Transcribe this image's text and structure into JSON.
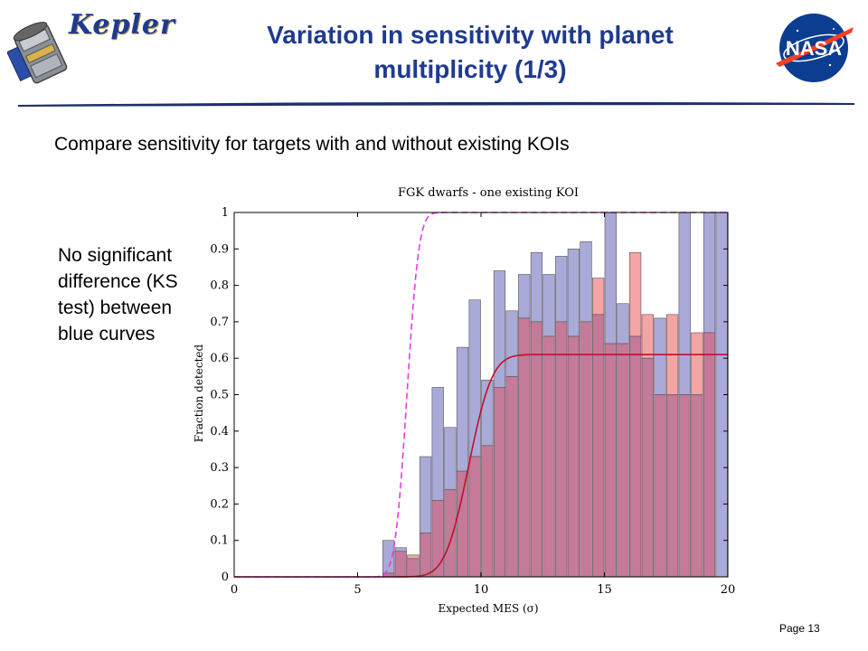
{
  "header": {
    "title": "Variation in sensitivity with planet multiplicity (1/3)",
    "logo_left_text": "Kepler",
    "logo_right_text": "NASA"
  },
  "subtitle": "Compare sensitivity for targets with and without existing KOIs",
  "side_note": "No significant difference (KS test) between blue curves",
  "page_number": "Page 13",
  "colors": {
    "title": "#1f3b8f",
    "blue_bar_fill": "#aaaad8",
    "red_bar_fill": "#f4a4a4",
    "overlap_fill": "#c47a98",
    "red_curve": "#c0102a",
    "magenta_curve": "#e63ce6",
    "nasa_blue": "#0b3d91",
    "nasa_red": "#fc3d21"
  },
  "chart_data": {
    "type": "bar",
    "title": "FGK dwarfs - one existing KOI",
    "xlabel": "Expected MES (σ)",
    "ylabel": "Fraction detected",
    "xlim": [
      0,
      20
    ],
    "ylim": [
      0,
      1
    ],
    "xticks": [
      "0",
      "5",
      "10",
      "15",
      "20"
    ],
    "yticks": [
      "0",
      "0.1",
      "0.2",
      "0.3",
      "0.4",
      "0.5",
      "0.6",
      "0.7",
      "0.8",
      "0.9",
      "1"
    ],
    "bin_width": 0.5,
    "bin_starts": [
      6,
      6.5,
      7,
      7.5,
      8,
      8.5,
      9,
      9.5,
      10,
      10.5,
      11,
      11.5,
      12,
      12.5,
      13,
      13.5,
      14,
      14.5,
      15,
      15.5,
      16,
      16.5,
      17,
      17.5,
      18,
      18.5,
      19,
      19.5
    ],
    "series": [
      {
        "values": [
          0.1,
          0.08,
          0.05,
          0.33,
          0.52,
          0.41,
          0.63,
          0.76,
          0.54,
          0.84,
          0.73,
          0.83,
          0.89,
          0.83,
          0.88,
          0.9,
          0.92,
          0.72,
          1.0,
          0.75,
          0.66,
          0.6,
          0.71,
          0.5,
          1.0,
          0.5,
          1.0,
          1.0
        ]
      },
      {
        "values": [
          0.01,
          0.07,
          0.06,
          0.12,
          0.21,
          0.24,
          0.29,
          0.33,
          0.36,
          0.52,
          0.55,
          0.71,
          0.7,
          0.66,
          0.7,
          0.66,
          0.7,
          0.82,
          0.64,
          0.64,
          0.89,
          0.72,
          0.5,
          0.72,
          0.5,
          0.67,
          0.67,
          0.0
        ]
      }
    ],
    "curves": [
      {
        "style": "solid",
        "asymptote": 0.61,
        "midpoint": 9.5,
        "scale": 0.75
      },
      {
        "style": "dashed",
        "asymptote": 1.0,
        "midpoint": 7.0,
        "scale": 0.38
      }
    ],
    "grid": false,
    "legend": "none"
  }
}
